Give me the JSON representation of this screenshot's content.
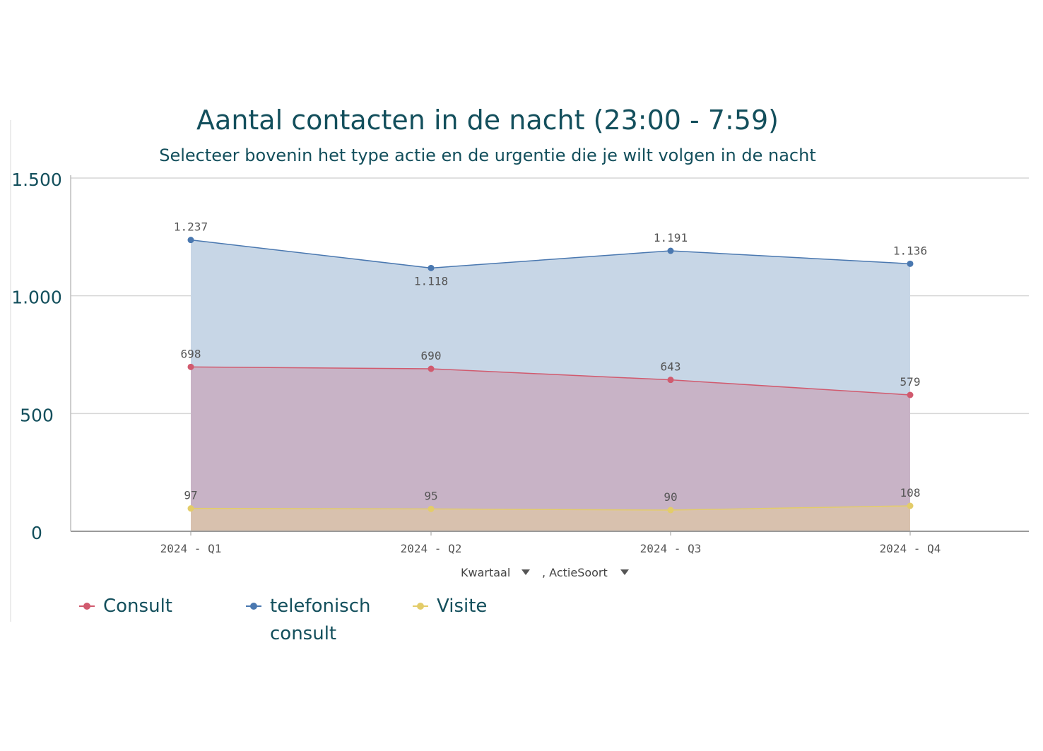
{
  "chart_data": {
    "type": "area",
    "title": "Aantal contacten in de nacht (23:00 - 7:59)",
    "subtitle": "Selecteer bovenin het type actie en de urgentie die je wilt volgen in de nacht",
    "categories": [
      "2024 - Q1",
      "2024 - Q2",
      "2024 - Q3",
      "2024 - Q4"
    ],
    "series": [
      {
        "name": "telefonisch consult",
        "values": [
          1237,
          1118,
          1191,
          1136
        ],
        "labels": [
          "1.237",
          "1.118",
          "1.191",
          "1.136"
        ],
        "color": "#4a78b0",
        "fill": "#c7d6e6"
      },
      {
        "name": "Consult",
        "values": [
          698,
          690,
          643,
          579
        ],
        "labels": [
          "698",
          "690",
          "643",
          "579"
        ],
        "color": "#d15a6e",
        "fill": "#c8b3c6"
      },
      {
        "name": "Visite",
        "values": [
          97,
          95,
          90,
          108
        ],
        "labels": [
          "97",
          "95",
          "90",
          "108"
        ],
        "color": "#e3cc69",
        "fill": "#d8c1ae"
      }
    ],
    "yticks": [
      {
        "value": 0,
        "label": "0"
      },
      {
        "value": 500,
        "label": "500"
      },
      {
        "value": 1000,
        "label": "1.000"
      },
      {
        "value": 1500,
        "label": "1.500"
      }
    ],
    "ylim": [
      0,
      1500
    ],
    "grid": true,
    "dimension_labels": [
      "Kwartaal",
      ", ActieSoort"
    ],
    "legend_position": "bottom-left",
    "legend": [
      {
        "name": "Consult",
        "color": "#d15a6e"
      },
      {
        "name": "telefonisch consult",
        "color": "#4a78b0"
      },
      {
        "name": "Visite",
        "color": "#e3cc69"
      }
    ]
  }
}
